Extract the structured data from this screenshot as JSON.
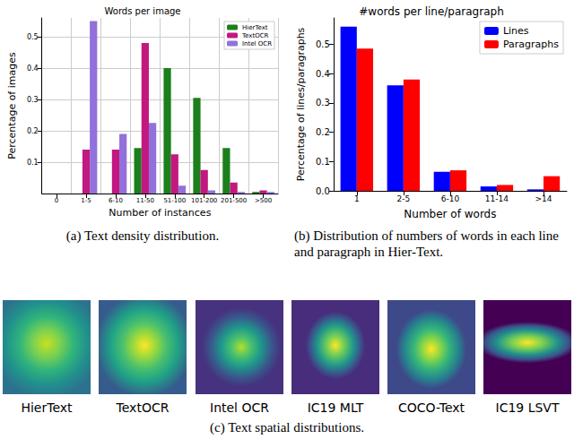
{
  "chart_data": [
    {
      "type": "bar",
      "title": "Words per image",
      "x_label": "Number of instances",
      "y_label": "Percentage of images",
      "categories": [
        "0",
        "1-5",
        "6-10",
        "11-50",
        "51-100",
        "101-200",
        "201-500",
        ">500"
      ],
      "series": [
        {
          "name": "HierText",
          "color": "#1b7f1b",
          "values": [
            0,
            0,
            0,
            0.145,
            0.4,
            0.305,
            0.145,
            0.005
          ]
        },
        {
          "name": "TextOCR",
          "color": "#c2187f",
          "values": [
            0,
            0.14,
            0.14,
            0.48,
            0.125,
            0.075,
            0.035,
            0.01
          ]
        },
        {
          "name": "Intel OCR",
          "color": "#9370db",
          "values": [
            0,
            0.55,
            0.19,
            0.225,
            0.025,
            0.01,
            0.005,
            0.005
          ]
        }
      ],
      "ylim": [
        0,
        0.56
      ],
      "yticks": [
        0.1,
        0.2,
        0.3,
        0.4,
        0.5
      ],
      "grid": true,
      "legend": "upper right"
    },
    {
      "type": "bar",
      "title": "#words per line/paragraph",
      "x_label": "Number of words",
      "y_label": "Percentage of lines/paragraphs",
      "categories": [
        "1",
        "2-5",
        "6-10",
        "11-14",
        ">14"
      ],
      "series": [
        {
          "name": "Lines",
          "color": "#0000ff",
          "values": [
            0.56,
            0.36,
            0.065,
            0.015,
            0.005
          ]
        },
        {
          "name": "Paragraphs",
          "color": "#ff0000",
          "values": [
            0.485,
            0.38,
            0.07,
            0.02,
            0.05
          ]
        }
      ],
      "ylim": [
        0,
        0.59
      ],
      "yticks": [
        {
          "value": 0,
          "label": "0.0"
        },
        {
          "value": 0.1,
          "label": "0.1"
        },
        {
          "value": 0.2,
          "label": "0.2"
        },
        {
          "value": 0.3,
          "label": "0.3"
        },
        {
          "value": 0.4,
          "label": "0.4"
        },
        {
          "value": 0.5,
          "label": "0.5"
        }
      ],
      "grid": false,
      "legend": "upper right"
    }
  ],
  "captions": [
    "(a) Text density distribution.",
    "(b) Distribution of numbers of words in each line and paragraph in Hier-Text.",
    "(c) Text spatial distributions."
  ],
  "spatial_maps": [
    "HierText",
    "TextOCR",
    "Intel OCR",
    "IC19 MLT",
    "COCO-Text",
    "IC19 LSVT"
  ]
}
